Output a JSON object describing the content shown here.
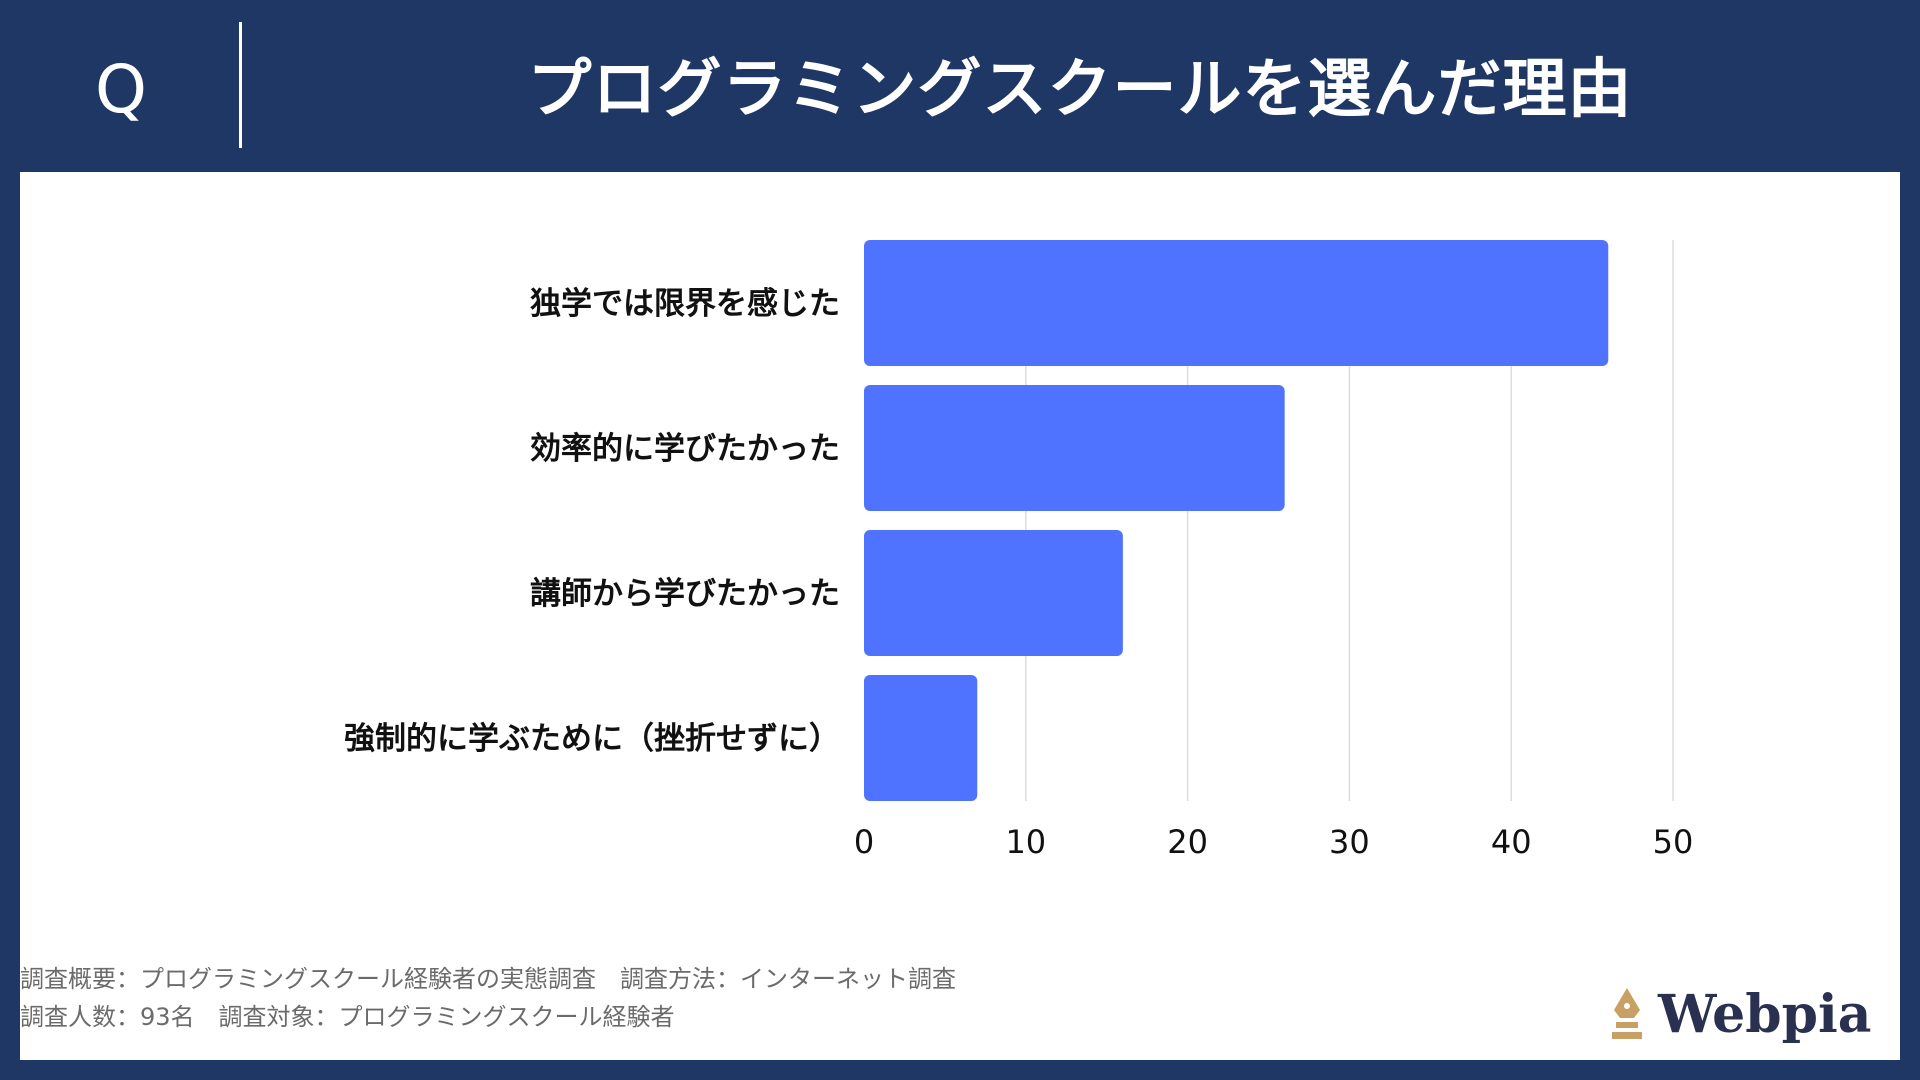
{
  "header": {
    "q_mark": "Q",
    "title": "プログラミングスクールを選んだ理由"
  },
  "chart_data": {
    "type": "bar",
    "orientation": "horizontal",
    "categories": [
      "独学では限界を感じた",
      "効率的に学びたかった",
      "講師から学びたかった",
      "強制的に学ぶために（挫折せずに）"
    ],
    "values": [
      46,
      26,
      16,
      7
    ],
    "xlim": [
      0,
      50
    ],
    "xticks": [
      0,
      10,
      20,
      30,
      40,
      50
    ],
    "grid": true,
    "bar_color": "#5073ff"
  },
  "footer": {
    "line1": "調査概要：プログラミングスクール経験者の実態調査　調査方法：インターネット調査",
    "line2": "調査人数：93名　調査対象：プログラミングスクール経験者"
  },
  "logo": {
    "text": "Webpia",
    "icon": "pen-nib-icon",
    "icon_color": "#c9a063"
  },
  "colors": {
    "background": "#1f3765",
    "panel": "#ffffff"
  }
}
